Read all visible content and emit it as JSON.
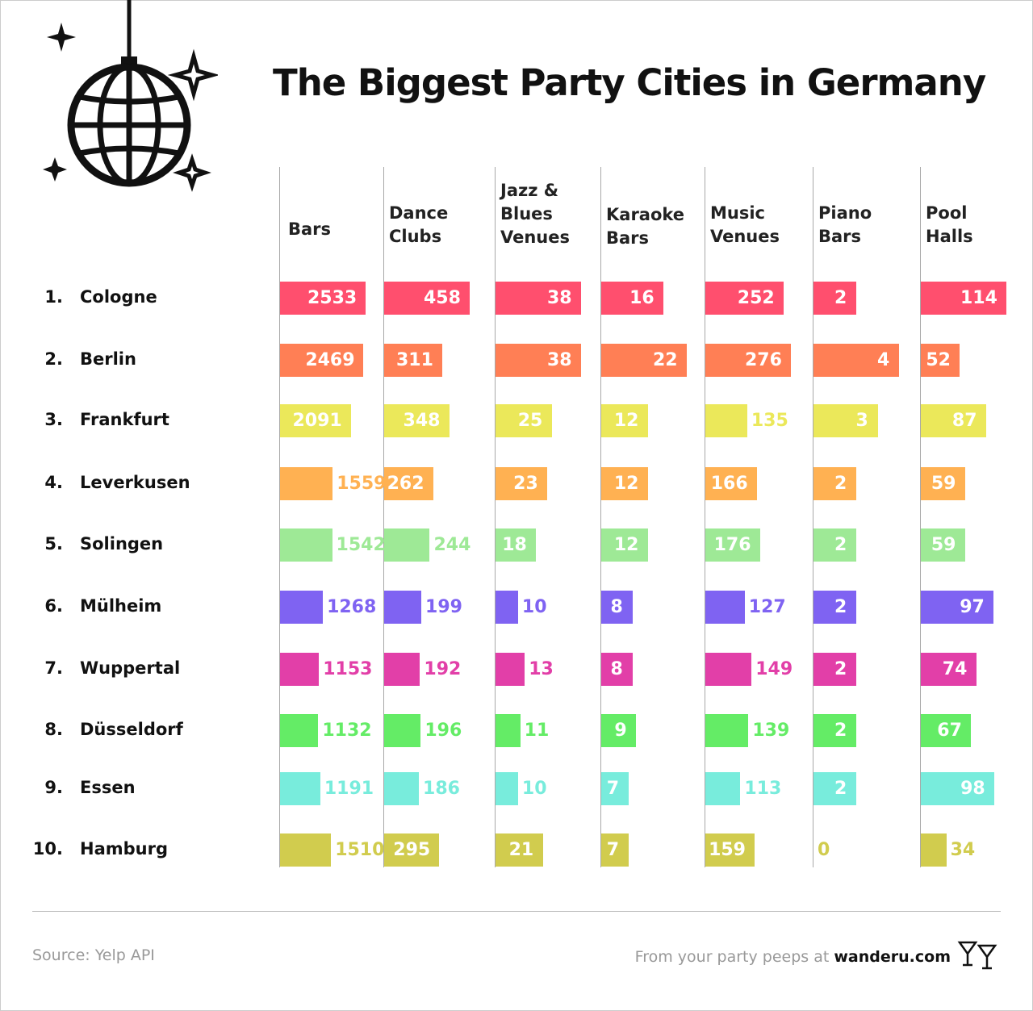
{
  "title": "The Biggest Party Cities in Germany",
  "footer": {
    "source": "Source: Yelp API",
    "credit_prefix": "From your party peeps at",
    "credit_site": "wanderu.com"
  },
  "icons": [
    "disco-ball-icon",
    "sparkle-icon",
    "cocktail-glasses-icon"
  ],
  "chart_data": {
    "type": "bar",
    "title": "The Biggest Party Cities in Germany",
    "columns": [
      "Bars",
      "Dance\nClubs",
      "Jazz &\nBlues\nVenues",
      "Karaoke\nBars",
      "Music\nVenues",
      "Piano\nBars",
      "Pool\nHalls"
    ],
    "rows": [
      {
        "rank": "1.",
        "city": "Cologne",
        "color": "#ff4f6e",
        "values": [
          2533,
          458,
          38,
          16,
          252,
          2,
          114
        ]
      },
      {
        "rank": "2.",
        "city": "Berlin",
        "color": "#ff7f55",
        "values": [
          2469,
          311,
          38,
          22,
          276,
          4,
          52
        ]
      },
      {
        "rank": "3.",
        "city": "Frankfurt",
        "color": "#ebe85a",
        "values": [
          2091,
          348,
          25,
          12,
          135,
          3,
          87
        ]
      },
      {
        "rank": "4.",
        "city": "Leverkusen",
        "color": "#ffb152",
        "values": [
          1559,
          262,
          23,
          12,
          166,
          2,
          59
        ]
      },
      {
        "rank": "5.",
        "city": "Solingen",
        "color": "#9ee996",
        "values": [
          1542,
          244,
          18,
          12,
          176,
          2,
          59
        ]
      },
      {
        "rank": "6.",
        "city": "Mülheim",
        "color": "#7f63f2",
        "values": [
          1268,
          199,
          10,
          8,
          127,
          2,
          97
        ]
      },
      {
        "rank": "7.",
        "city": "Wuppertal",
        "color": "#e23fa8",
        "values": [
          1153,
          192,
          13,
          8,
          149,
          2,
          74
        ]
      },
      {
        "rank": "8.",
        "city": "Düsseldorf",
        "color": "#64ec66",
        "values": [
          1132,
          196,
          11,
          9,
          139,
          2,
          67
        ]
      },
      {
        "rank": "9.",
        "city": "Essen",
        "color": "#78ecdc",
        "values": [
          1191,
          186,
          10,
          7,
          113,
          2,
          98
        ]
      },
      {
        "rank": "10.",
        "city": "Hamburg",
        "color": "#d1cc4e",
        "values": [
          1510,
          295,
          21,
          7,
          159,
          0,
          34
        ]
      }
    ]
  }
}
